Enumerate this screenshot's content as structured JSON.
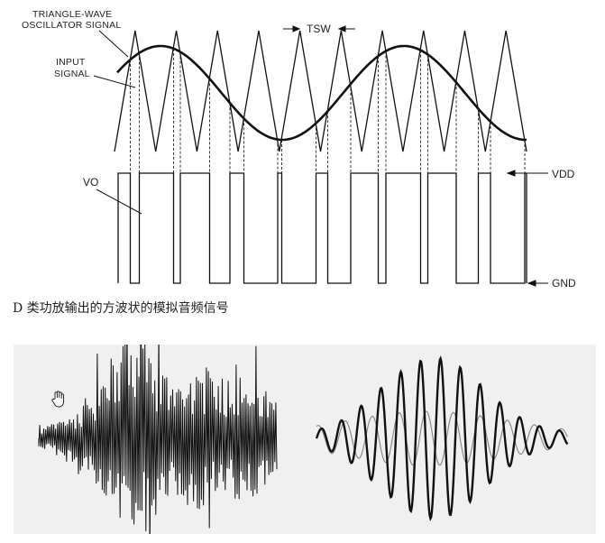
{
  "diagram": {
    "labels": {
      "triangle_wave_line1": "TRIANGLE-WAVE",
      "triangle_wave_line2": "OSCILLATOR SIGNAL",
      "input_line1": "INPUT",
      "input_line2": "SIGNAL",
      "tsw": "TSW",
      "vo": "VO",
      "vdd": "VDD",
      "gnd": "GND"
    },
    "triangle_cycles": 10,
    "input_signal_cycles": 1.8
  },
  "caption": "D 类功放输出的方波状的模拟音频信号",
  "colors": {
    "line": "#111111",
    "panel_bg": "#f0f0f0",
    "thin_wave": "#888888"
  }
}
